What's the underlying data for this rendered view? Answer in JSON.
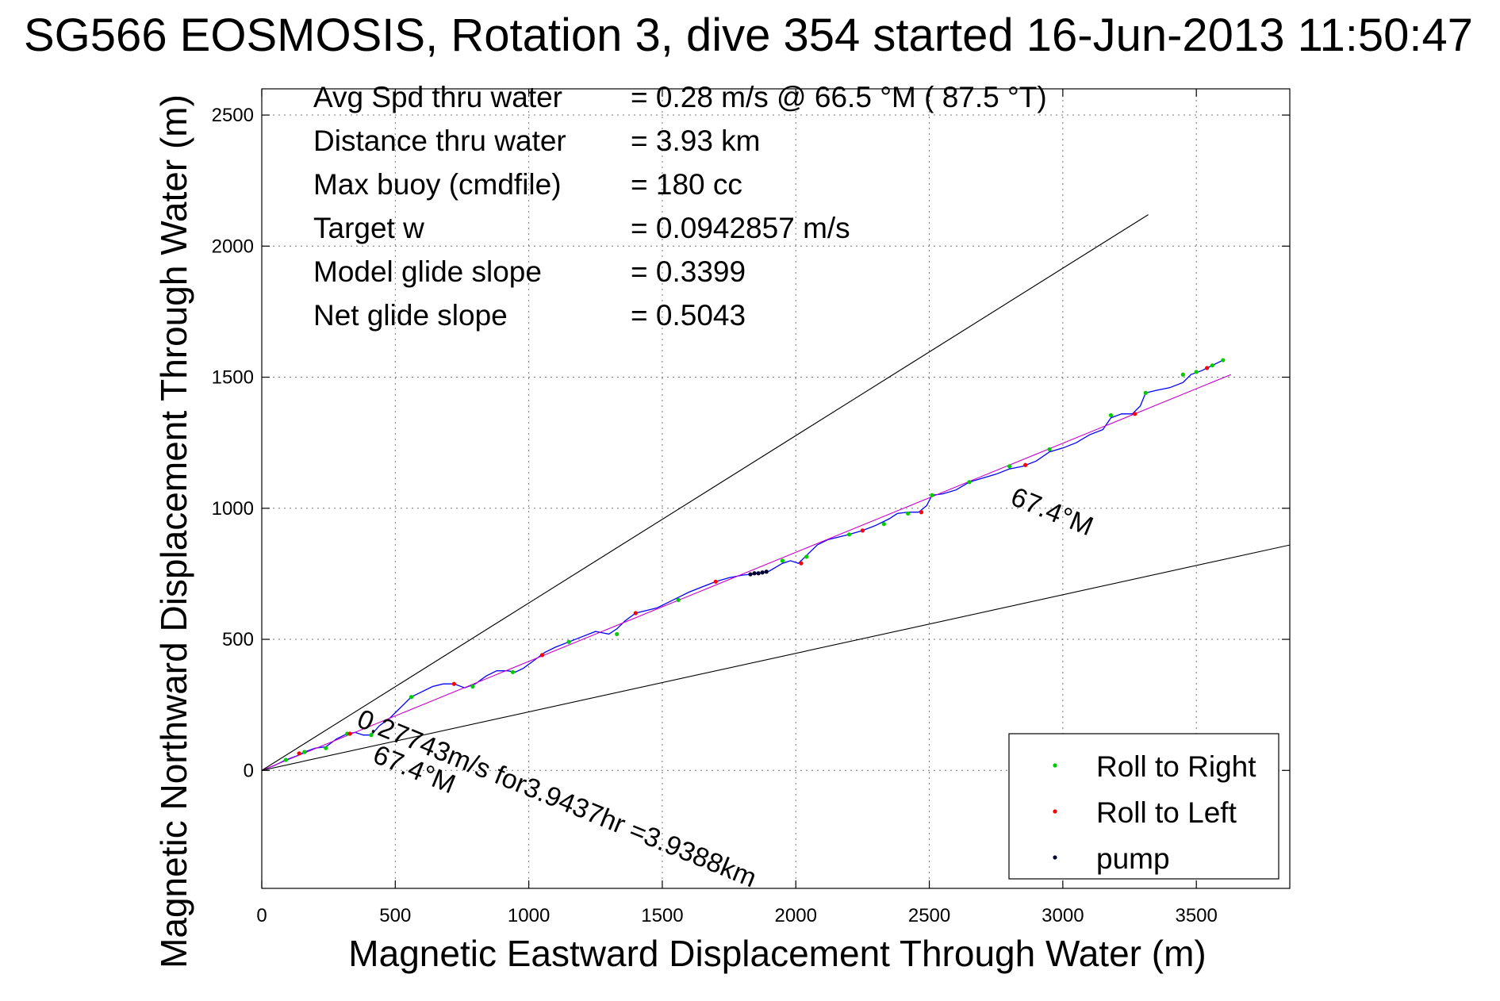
{
  "chart_data": {
    "type": "scatter",
    "title": "SG566 EOSMOSIS, Rotation 3, dive 354 started 16-Jun-2013 11:50:47",
    "xlabel": "Magnetic Eastward Displacement Through Water (m)",
    "ylabel": "Magnetic Northward Displacement Through Water (m)",
    "xlim": [
      0,
      3850
    ],
    "ylim": [
      -450,
      2600
    ],
    "xticks": [
      0,
      500,
      1000,
      1500,
      2000,
      2500,
      3000,
      3500
    ],
    "yticks": [
      0,
      500,
      1000,
      1500,
      2000,
      2500
    ],
    "xtick_labels": [
      "0",
      "500",
      "1000",
      "1500",
      "2000",
      "2500",
      "3000",
      "3500"
    ],
    "ytick_labels": [
      "0",
      "500",
      "1000",
      "1500",
      "2000",
      "2500"
    ],
    "grid": true,
    "legend_position": "bottom-right",
    "stats": [
      {
        "label": "Avg Spd thru water",
        "value": "=  0.28 m/s @  66.5 °M ( 87.5 °T)"
      },
      {
        "label": "Distance thru water",
        "value": "=  3.93 km"
      },
      {
        "label": "Max buoy (cmdfile)",
        "value": "= 180 cc"
      },
      {
        "label": "Target w",
        "value": "= 0.0942857 m/s"
      },
      {
        "label": "Model glide slope",
        "value": "= 0.3399"
      },
      {
        "label": "Net glide slope",
        "value": "= 0.5043"
      }
    ],
    "annotations": {
      "speed_text": "0.27743m/s for3.9437hr =3.9388km",
      "heading_lower": "67.4°M",
      "heading_right": "67.4°M"
    },
    "series": [
      {
        "name": "track",
        "kind": "line",
        "color": "#0000ff",
        "x": [
          0,
          50,
          90,
          130,
          160,
          200,
          240,
          280,
          320,
          350,
          380,
          410,
          440,
          480,
          520,
          560,
          600,
          640,
          680,
          720,
          760,
          800,
          840,
          880,
          920,
          950,
          980,
          1020,
          1060,
          1100,
          1150,
          1200,
          1250,
          1300,
          1330,
          1360,
          1400,
          1440,
          1480,
          1520,
          1560,
          1600,
          1650,
          1700,
          1750,
          1800,
          1850,
          1900,
          1950,
          1980,
          2010,
          2040,
          2080,
          2120,
          2160,
          2200,
          2250,
          2300,
          2350,
          2380,
          2420,
          2460,
          2490,
          2510,
          2550,
          2600,
          2650,
          2700,
          2750,
          2800,
          2850,
          2900,
          2950,
          3000,
          3050,
          3100,
          3150,
          3180,
          3220,
          3260,
          3290,
          3310,
          3350,
          3400,
          3450,
          3480,
          3520,
          3560,
          3600
        ],
        "y": [
          0,
          20,
          40,
          55,
          70,
          85,
          90,
          120,
          140,
          145,
          135,
          135,
          170,
          200,
          240,
          280,
          300,
          320,
          330,
          330,
          315,
          330,
          360,
          380,
          380,
          375,
          390,
          420,
          450,
          470,
          490,
          510,
          530,
          520,
          540,
          570,
          600,
          610,
          620,
          640,
          660,
          680,
          700,
          720,
          735,
          745,
          750,
          760,
          790,
          800,
          790,
          820,
          860,
          880,
          890,
          900,
          915,
          935,
          960,
          980,
          985,
          985,
          1010,
          1050,
          1055,
          1070,
          1100,
          1115,
          1130,
          1150,
          1160,
          1180,
          1215,
          1230,
          1250,
          1280,
          1300,
          1345,
          1360,
          1360,
          1390,
          1440,
          1450,
          1460,
          1480,
          1510,
          1525,
          1545,
          1565
        ]
      },
      {
        "name": "Roll to Right",
        "kind": "markers",
        "color": "#00cc00",
        "x": [
          90,
          160,
          240,
          320,
          410,
          560,
          790,
          940,
          1150,
          1330,
          1560,
          1950,
          2040,
          2200,
          2330,
          2420,
          2510,
          2650,
          2800,
          2950,
          3180,
          3310,
          3450,
          3500,
          3560,
          3600
        ],
        "y": [
          40,
          70,
          85,
          140,
          135,
          280,
          320,
          375,
          490,
          520,
          650,
          800,
          815,
          900,
          940,
          980,
          1050,
          1100,
          1160,
          1225,
          1355,
          1440,
          1510,
          1520,
          1545,
          1565
        ]
      },
      {
        "name": "Roll to Left",
        "kind": "markers",
        "color": "#ff0000",
        "x": [
          140,
          330,
          720,
          1050,
          1400,
          1700,
          2020,
          2250,
          2470,
          2860,
          3270,
          3540
        ],
        "y": [
          65,
          140,
          330,
          440,
          600,
          720,
          790,
          915,
          985,
          1165,
          1360,
          1535
        ]
      },
      {
        "name": "pump",
        "kind": "markers",
        "color": "#000033",
        "x": [
          1830,
          1845,
          1860,
          1875,
          1890
        ],
        "y": [
          748,
          752,
          752,
          755,
          758
        ]
      },
      {
        "name": "mean course",
        "kind": "line",
        "color": "#cc00cc",
        "x": [
          0,
          3630
        ],
        "y": [
          0,
          1510
        ]
      },
      {
        "name": "glide envelope upper",
        "kind": "line",
        "color": "#000000",
        "x": [
          0,
          3320
        ],
        "y": [
          0,
          2120
        ]
      },
      {
        "name": "glide envelope lower",
        "kind": "line",
        "color": "#000000",
        "x": [
          0,
          3850
        ],
        "y": [
          0,
          860
        ]
      }
    ],
    "legend": [
      {
        "label": "Roll to Right",
        "color": "#00cc00"
      },
      {
        "label": "Roll to Left",
        "color": "#ff0000"
      },
      {
        "label": "pump",
        "color": "#000033"
      }
    ]
  }
}
